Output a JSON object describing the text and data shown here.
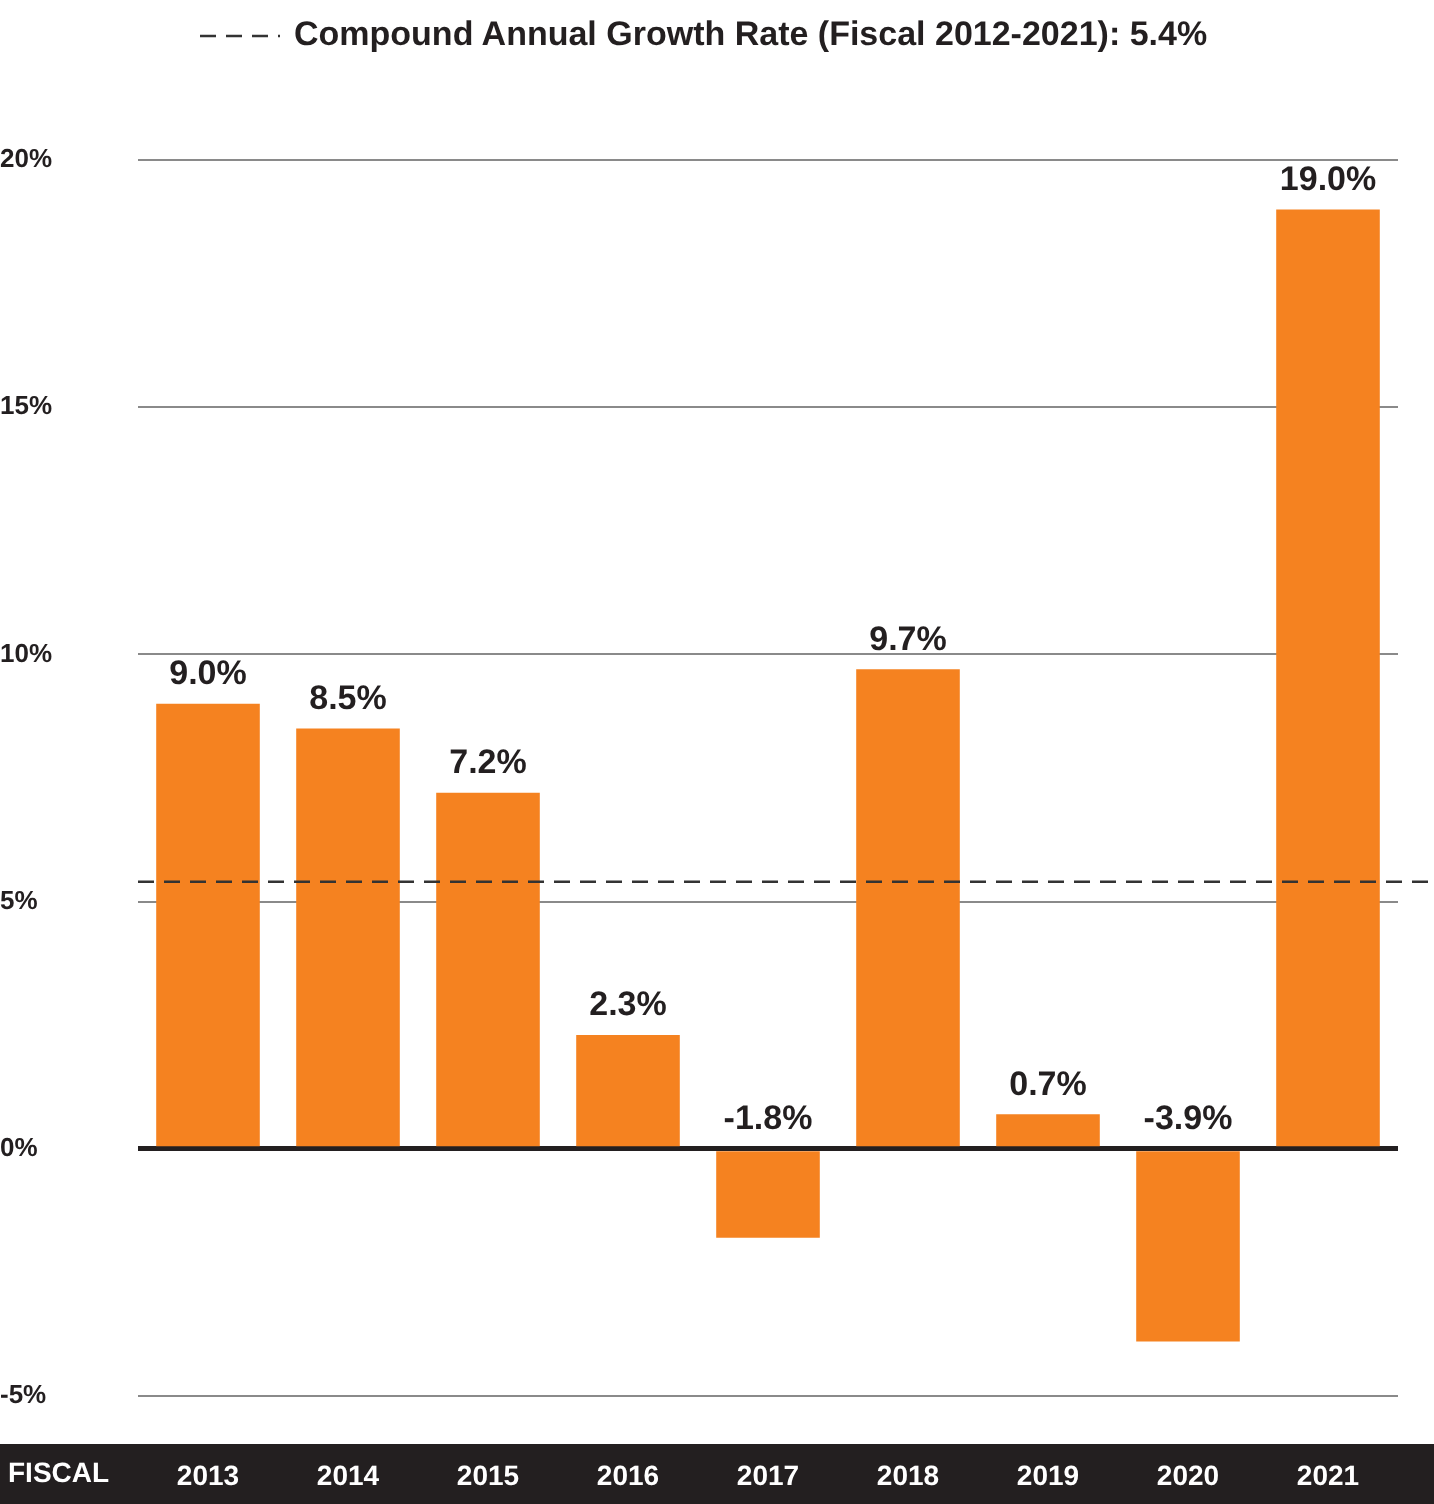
{
  "chart_data": {
    "type": "bar",
    "xlabel": "FISCAL",
    "categories": [
      "2013",
      "2014",
      "2015",
      "2016",
      "2017",
      "2018",
      "2019",
      "2020",
      "2021"
    ],
    "values": [
      9.0,
      8.5,
      7.2,
      2.3,
      -1.8,
      9.7,
      0.7,
      -3.9,
      19.0
    ],
    "value_labels": [
      "9.0%",
      "8.5%",
      "7.2%",
      "2.3%",
      "-1.8%",
      "9.7%",
      "0.7%",
      "-3.9%",
      "19.0%"
    ],
    "color": "#f58220",
    "ylim": [
      -5,
      20
    ],
    "yticks": [
      {
        "value": -5,
        "label": "-5%"
      },
      {
        "value": 0,
        "label": "0%"
      },
      {
        "value": 5,
        "label": "5%"
      },
      {
        "value": 10,
        "label": "10%"
      },
      {
        "value": 15,
        "label": "15%"
      },
      {
        "value": 20,
        "label": "20%"
      }
    ],
    "grid": "y",
    "ref_lines": [
      {
        "axis": "y",
        "value": 5.4,
        "label": "Compound Annual Growth Rate (Fiscal 2012-2021): 5.4%",
        "color": "#333333",
        "line_style": "dashed"
      }
    ]
  }
}
